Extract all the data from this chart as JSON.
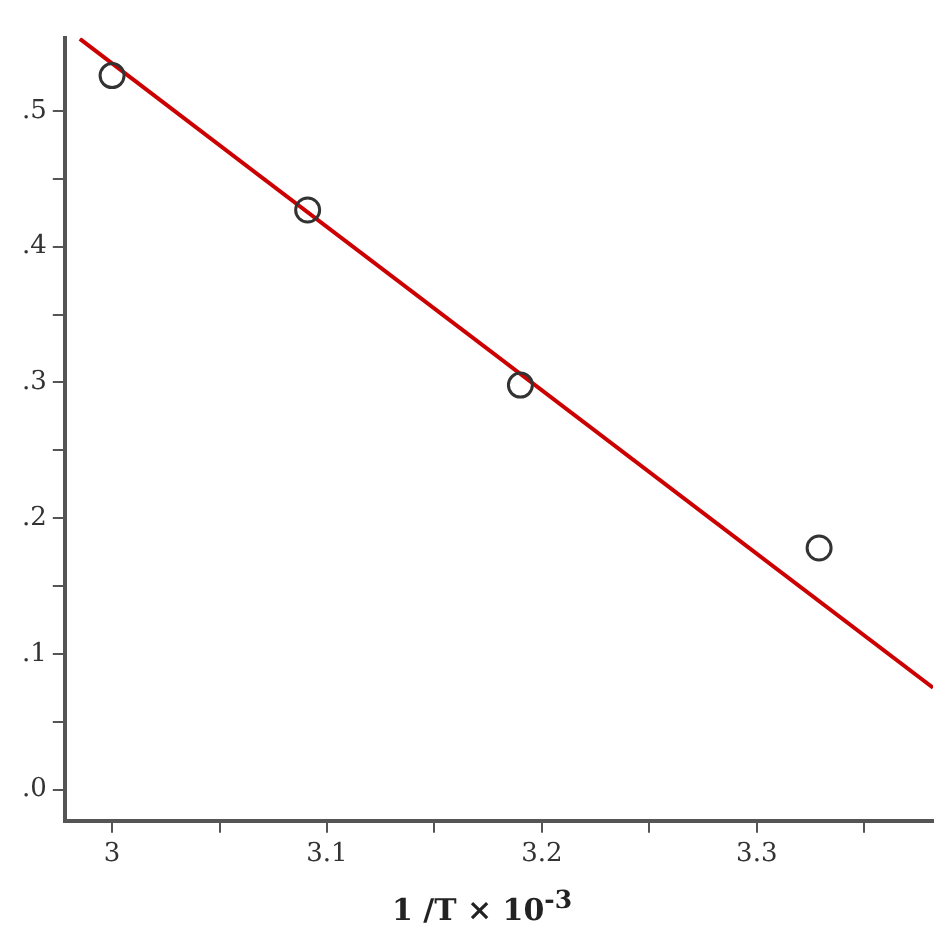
{
  "chart_data": {
    "type": "scatter",
    "xlabel": "1 /T × 10$^{-3}$",
    "xlim": [
      2.978,
      3.382
    ],
    "ylim": [
      -0.023,
      0.554
    ],
    "xticks": [
      3,
      {
        "value": 3.05,
        "label": null
      },
      3.1,
      {
        "value": 3.15,
        "label": null
      },
      3.2,
      {
        "value": 3.25,
        "label": null
      },
      3.3,
      {
        "value": 3.35,
        "label": null
      }
    ],
    "yticks": [
      {
        "value": 0,
        "label": ".0"
      },
      {
        "value": 0.05,
        "label": null
      },
      {
        "value": 0.1,
        "label": ".1"
      },
      {
        "value": 0.15,
        "label": null
      },
      {
        "value": 0.2,
        "label": ".2"
      },
      {
        "value": 0.25,
        "label": null
      },
      {
        "value": 0.3,
        "label": ".3"
      },
      {
        "value": 0.35,
        "label": null
      },
      {
        "value": 0.4,
        "label": ".4"
      },
      {
        "value": 0.45,
        "label": null
      },
      {
        "value": 0.5,
        "label": ".5"
      }
    ],
    "grid": false,
    "legend": false,
    "series": [
      {
        "color": "#333333",
        "marker": "circle",
        "x": [
          3.0,
          3.091,
          3.19,
          3.329
        ],
        "values": [
          0.526,
          0.427,
          0.298,
          0.178
        ]
      },
      {
        "type": "line",
        "color": "#cc0000",
        "marker": "none",
        "line_style": "solid",
        "x": [
          2.985,
          3.382
        ],
        "values": [
          0.553,
          0.075
        ]
      }
    ]
  }
}
